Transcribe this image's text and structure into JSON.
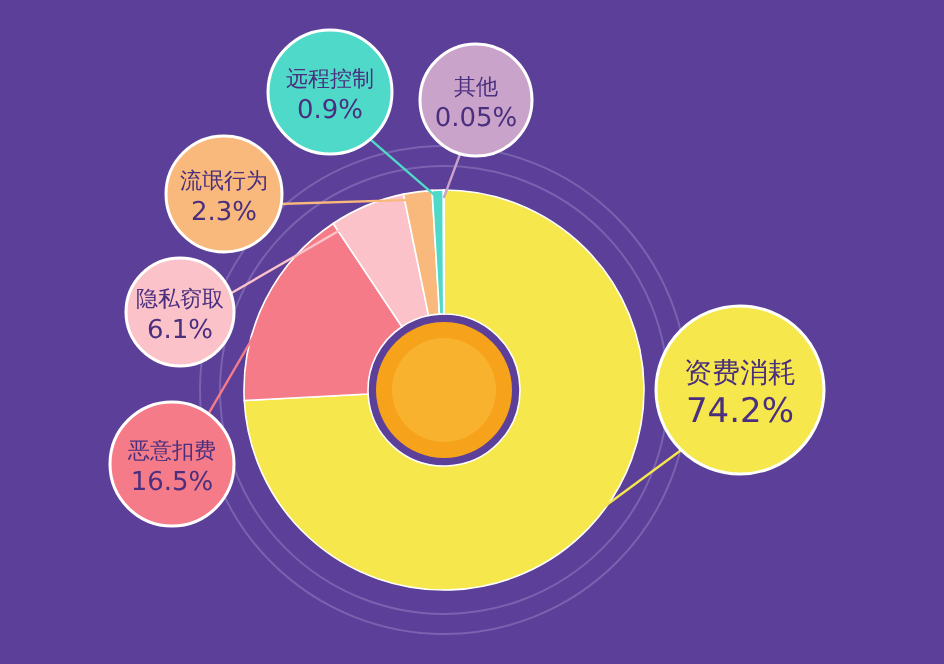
{
  "chart_data": {
    "type": "donut",
    "categories": [
      "资费消耗",
      "恶意扣费",
      "隐私窃取",
      "流氓行为",
      "远程控制",
      "其他"
    ],
    "values": [
      74.2,
      16.5,
      6.1,
      2.3,
      0.9,
      0.05
    ],
    "colors": [
      "#f6e84c",
      "#f57b88",
      "#fbc3c9",
      "#f9b97c",
      "#4fd9c9",
      "#c9a3c9"
    ],
    "value_labels": [
      "74.2%",
      "16.5%",
      "6.1%",
      "2.3%",
      "0.9%",
      "0.05%"
    ]
  }
}
